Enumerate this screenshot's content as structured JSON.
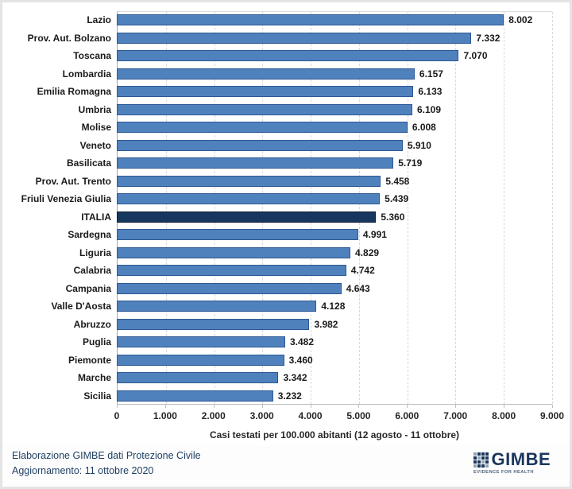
{
  "chart_data": {
    "type": "bar",
    "orientation": "horizontal",
    "categories": [
      "Lazio",
      "Prov. Aut. Bolzano",
      "Toscana",
      "Lombardia",
      "Emilia Romagna",
      "Umbria",
      "Molise",
      "Veneto",
      "Basilicata",
      "Prov. Aut. Trento",
      "Friuli Venezia Giulia",
      "ITALIA",
      "Sardegna",
      "Liguria",
      "Calabria",
      "Campania",
      "Valle D'Aosta",
      "Abruzzo",
      "Puglia",
      "Piemonte",
      "Marche",
      "Sicilia"
    ],
    "values": [
      8002,
      7332,
      7070,
      6157,
      6133,
      6109,
      6008,
      5910,
      5719,
      5458,
      5439,
      5360,
      4991,
      4829,
      4742,
      4643,
      4128,
      3982,
      3482,
      3460,
      3342,
      3232
    ],
    "value_labels": [
      "8.002",
      "7.332",
      "7.070",
      "6.157",
      "6.133",
      "6.109",
      "6.008",
      "5.910",
      "5.719",
      "5.458",
      "5.439",
      "5.360",
      "4.991",
      "4.829",
      "4.742",
      "4.643",
      "4.128",
      "3.982",
      "3.482",
      "3.460",
      "3.342",
      "3.232"
    ],
    "highlight_category": "ITALIA",
    "xlabel": "Casi testati per 100.000 abitanti (12 agosto - 11 ottobre)",
    "xlim": [
      0,
      9000
    ],
    "x_tick_values": [
      0,
      1000,
      2000,
      3000,
      4000,
      5000,
      6000,
      7000,
      8000,
      9000
    ],
    "x_tick_labels": [
      "0",
      "1.000",
      "2.000",
      "3.000",
      "4.000",
      "5.000",
      "6.000",
      "7.000",
      "8.000",
      "9.000"
    ],
    "grid": "vertical-dashed",
    "legend": "none"
  },
  "colors": {
    "bar_fill": "#4f81bd",
    "bar_border": "#2e5893",
    "highlight_fill": "#17375e",
    "highlight_border": "#0d1f35",
    "gridline": "#d9d9d9",
    "footer_text": "#1f4064",
    "logo_navy": "#1b365d"
  },
  "footer": {
    "credit_line1": "Elaborazione GIMBE dati Protezione Civile",
    "credit_line2": "Aggiornamento: 11 ottobre 2020",
    "logo_text": "GIMBE",
    "logo_tagline": "EVIDENCE FOR HEALTH"
  }
}
